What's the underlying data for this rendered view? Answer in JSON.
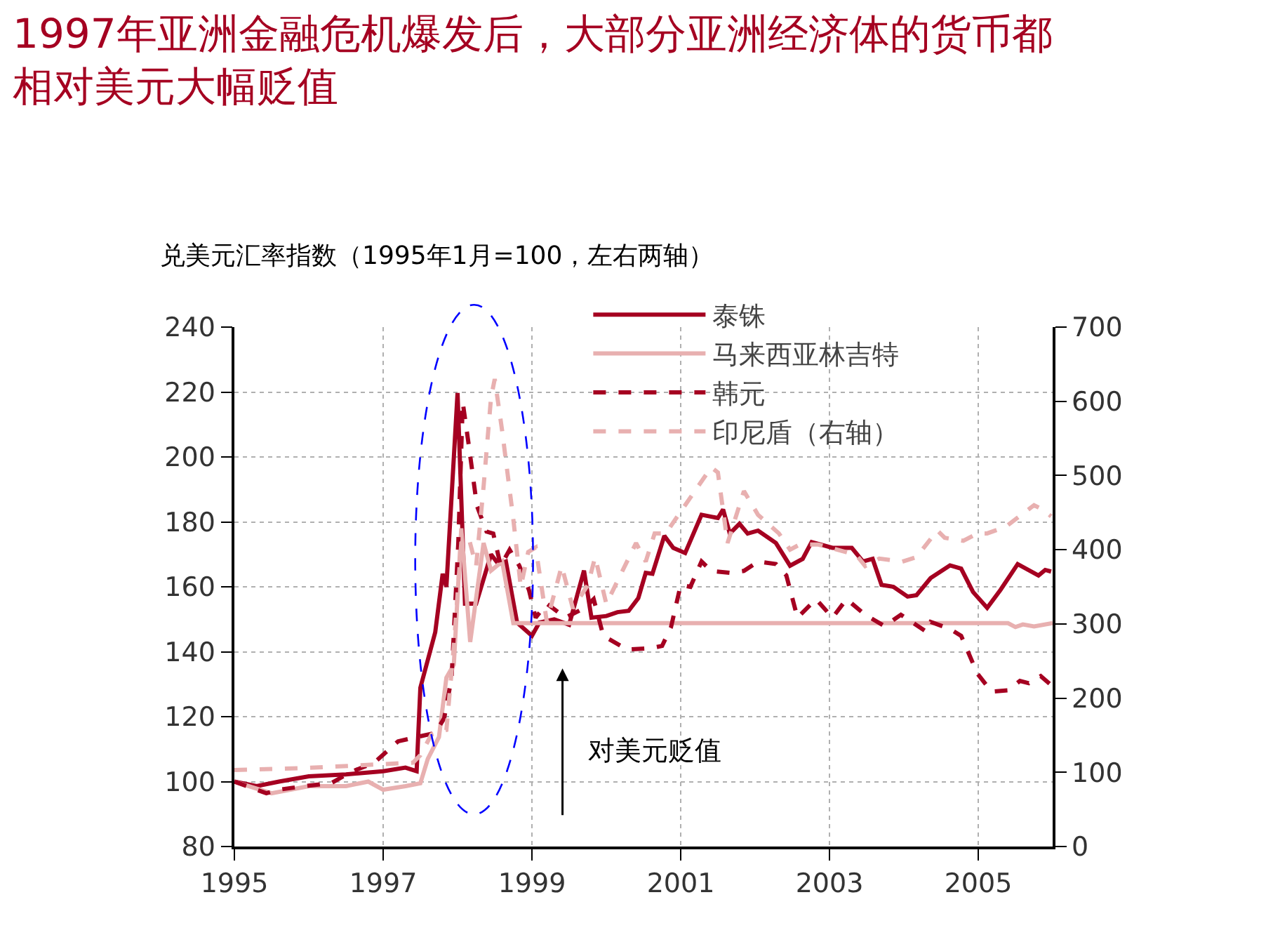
{
  "chart_data": {
    "type": "line",
    "title": "1997年亚洲金融危机爆发后，大部分亚洲经济体的货币都相对美元大幅贬值",
    "subtitle": "兑美元汇率指数（1995年1月=100，左右两轴）",
    "xlim": [
      1995,
      2006
    ],
    "xticks": [
      1995,
      1997,
      1999,
      2001,
      2003,
      2005
    ],
    "ylim": [
      80,
      240
    ],
    "yticks": [
      80,
      100,
      120,
      140,
      160,
      180,
      200,
      220,
      240
    ],
    "y2lim": [
      0,
      700
    ],
    "y2ticks": [
      0,
      100,
      200,
      300,
      400,
      500,
      600,
      700
    ],
    "grid": true,
    "legend": "top",
    "marker": "none",
    "annotations": [
      "对美元贬值"
    ],
    "series": [
      {
        "name": "泰铢",
        "color": "#a50021",
        "line_style": "solid",
        "x": [
          1995.0,
          1995.3,
          1995.6,
          1996.0,
          1996.5,
          1997.0,
          1997.3,
          1997.45,
          1997.5,
          1997.7,
          1997.8,
          1997.85,
          1998.0,
          1998.1,
          1998.25,
          1998.45,
          1998.55,
          1998.65,
          1998.8,
          1999.0,
          1999.1,
          1999.3,
          1999.5,
          1999.7,
          1999.8,
          2000.0,
          2000.15,
          2000.3,
          2000.43,
          2000.53,
          2000.62,
          2000.78,
          2000.9,
          2001.06,
          2001.28,
          2001.5,
          2001.57,
          2001.66,
          2001.79,
          2001.9,
          2002.04,
          2002.28,
          2002.47,
          2002.64,
          2002.76,
          2003.04,
          2003.3,
          2003.45,
          2003.58,
          2003.7,
          2003.86,
          2004.05,
          2004.17,
          2004.36,
          2004.62,
          2004.77,
          2004.93,
          2005.12,
          2005.3,
          2005.53,
          2005.81,
          2005.9,
          2005.98
        ],
        "values": [
          100,
          98.6,
          100,
          101.6,
          102.2,
          103.2,
          104.3,
          103.2,
          128.9,
          146,
          164,
          160,
          219.7,
          154.8,
          154.8,
          170,
          167,
          167.8,
          149,
          144.9,
          149,
          150,
          148.3,
          165,
          150.5,
          151,
          152.2,
          152.6,
          156.5,
          164.3,
          164,
          175.7,
          172,
          170.4,
          182.2,
          181.2,
          183.8,
          176.4,
          179.4,
          176.4,
          177.3,
          173.5,
          166.5,
          168.6,
          173.8,
          172,
          172,
          167.8,
          168.6,
          160.6,
          160,
          157,
          157.4,
          162.7,
          166.6,
          165.6,
          158.4,
          153.5,
          159.1,
          167,
          163.5,
          165.2,
          164.7
        ]
      },
      {
        "name": "马来西亚林吉特",
        "color": "#e8b0b0",
        "line_style": "solid",
        "x": [
          1995.0,
          1995.5,
          1996.0,
          1996.5,
          1996.8,
          1997.0,
          1997.3,
          1997.5,
          1997.6,
          1997.75,
          1997.85,
          1997.95,
          1998.05,
          1998.17,
          1998.35,
          1998.45,
          1998.6,
          1998.75,
          2005.4,
          2005.5,
          2005.6,
          2005.75,
          2006.0
        ],
        "values": [
          100,
          96.4,
          98.6,
          98.6,
          100,
          97.5,
          98.6,
          99.5,
          107,
          113.7,
          132,
          136,
          178,
          143,
          173.5,
          165,
          167.8,
          148.8,
          148.8,
          147.6,
          148.4,
          147.8,
          148.8
        ]
      },
      {
        "name": "韩元",
        "color": "#a50021",
        "line_style": "dashed",
        "x": [
          1995.0,
          1995.43,
          1995.6,
          1995.94,
          1996.3,
          1996.57,
          1996.88,
          1997.2,
          1997.45,
          1997.7,
          1997.82,
          1997.92,
          1998.01,
          1998.07,
          1998.15,
          1998.26,
          1998.39,
          1998.48,
          1998.58,
          1998.7,
          1998.83,
          1998.96,
          1999.05,
          1999.2,
          1999.45,
          1999.71,
          1999.83,
          1999.96,
          2000.28,
          2000.6,
          2000.75,
          2000.87,
          2001.0,
          2001.13,
          2001.28,
          2001.41,
          2001.66,
          2001.85,
          2002.04,
          2002.28,
          2002.42,
          2002.57,
          2002.82,
          2003.04,
          2003.23,
          2003.48,
          2003.74,
          2003.96,
          2004.3,
          2004.36,
          2004.62,
          2004.77,
          2004.99,
          2005.18,
          2005.4,
          2005.56,
          2005.68,
          2005.84,
          2005.98
        ],
        "values": [
          100,
          96.4,
          97.5,
          98.6,
          99.5,
          103,
          105.8,
          112.4,
          113.7,
          115,
          119.5,
          132,
          173.5,
          216.8,
          203.8,
          185,
          177,
          176.4,
          166.5,
          171.4,
          166.5,
          159,
          150.5,
          154.8,
          150.5,
          153.5,
          156.2,
          144.9,
          140.7,
          141.1,
          141.8,
          147.6,
          160.6,
          160,
          167.8,
          164.9,
          164.3,
          164.9,
          167.8,
          167,
          163.5,
          150.5,
          156.2,
          150.5,
          156.2,
          151.4,
          147.9,
          151.4,
          146.2,
          149.2,
          147,
          144.9,
          133.2,
          127.7,
          128.1,
          131,
          130.3,
          132.5,
          129.7
        ]
      },
      {
        "name": "印尼盾（右轴）",
        "color": "#e8b0b0",
        "line_style": "dashed",
        "axis": "y2",
        "x": [
          1995.0,
          1996.0,
          1997.4,
          1997.5,
          1997.65,
          1997.85,
          1997.95,
          1998.05,
          1998.15,
          1998.25,
          1998.35,
          1998.45,
          1998.5,
          1998.6,
          1998.75,
          1998.85,
          1998.95,
          1999.05,
          1999.2,
          1999.4,
          1999.55,
          1999.75,
          1999.85,
          2000.0,
          2000.4,
          2000.53,
          2000.65,
          2000.8,
          2000.97,
          2001.41,
          2001.5,
          2001.63,
          2001.85,
          2002.04,
          2002.32,
          2002.47,
          2002.6,
          2002.85,
          2003.36,
          2003.48,
          2003.67,
          2003.98,
          2004.17,
          2004.45,
          2004.55,
          2004.8,
          2004.99,
          2005.12,
          2005.37,
          2005.75,
          2005.87,
          2005.98
        ],
        "values": [
          103,
          106,
          113,
          123,
          151,
          157,
          270,
          409,
          416,
          378,
          485,
          605,
          630,
          560,
          441,
          350,
          397,
          403,
          303,
          378,
          321,
          352,
          390,
          327,
          409,
          384,
          422,
          422,
          447,
          511,
          504,
          409,
          479,
          447,
          422,
          400,
          407,
          407,
          393,
          378,
          388,
          384,
          390,
          426,
          416,
          412,
          422,
          422,
          431,
          460,
          454,
          445
        ]
      }
    ]
  }
}
